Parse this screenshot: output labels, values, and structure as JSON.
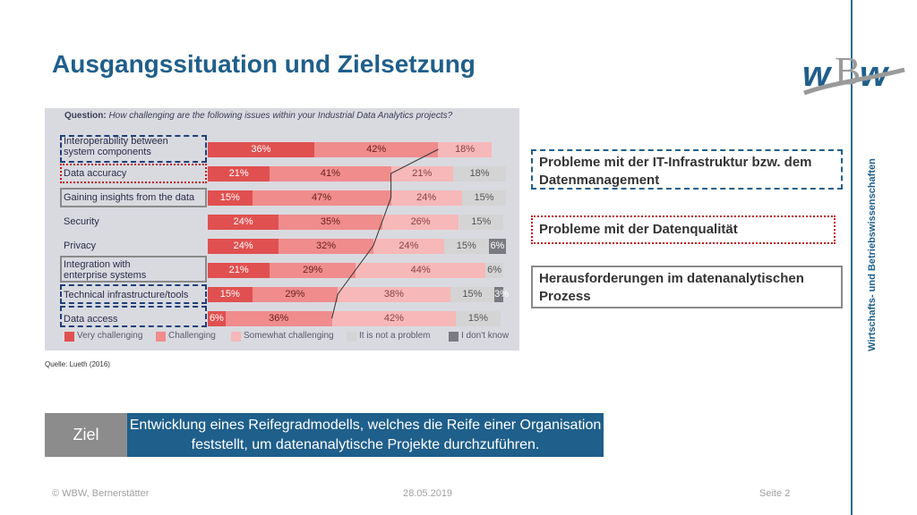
{
  "title": "Ausgangssituation und Zielsetzung",
  "logo_text": "wBw",
  "side_text": "Wirtschafts- und Betriebswissenschaften",
  "figure": {
    "question_label": "Question:",
    "question_text": "How challenging are the following issues within your Industrial Data Analytics projects?",
    "source": "Quelle: Lueth (2016)"
  },
  "chart_data": {
    "type": "bar",
    "stacked": true,
    "orientation": "horizontal",
    "title": "Question: How challenging are the following issues within your Industrial Data Analytics projects?",
    "categories": [
      "Interoperability between system components",
      "Data accuracy",
      "Gaining insights from the data",
      "Security",
      "Privacy",
      "Integration with enterprise systems",
      "Technical infrastructure/tools",
      "Data access"
    ],
    "series": [
      {
        "name": "Very challenging",
        "color": "#e05050",
        "values": [
          36,
          21,
          15,
          24,
          24,
          21,
          15,
          6
        ]
      },
      {
        "name": "Challenging",
        "color": "#f08c8c",
        "values": [
          42,
          41,
          47,
          35,
          32,
          29,
          29,
          36
        ]
      },
      {
        "name": "Somewhat challenging",
        "color": "#f6b8b8",
        "values": [
          18,
          21,
          24,
          26,
          24,
          44,
          38,
          42
        ]
      },
      {
        "name": "It is not a problem",
        "color": "#d4d4d4",
        "values": [
          0,
          18,
          15,
          15,
          15,
          6,
          15,
          15
        ]
      },
      {
        "name": "I don't know",
        "color": "#7a7a82",
        "values": [
          0,
          0,
          0,
          0,
          6,
          0,
          3,
          0
        ]
      }
    ],
    "legend_position": "bottom"
  },
  "callouts": [
    {
      "text": "Probleme mit der IT-Infrastruktur bzw. dem Datenmanagement"
    },
    {
      "text": "Probleme mit der Datenqualität"
    },
    {
      "text": "Herausforderungen im datenanalytischen Prozess"
    }
  ],
  "goal": {
    "label": "Ziel",
    "text": "Entwicklung eines Reifegradmodells, welches die Reife einer Organisation feststellt, um datenanalytische Projekte durchzuführen."
  },
  "footer": {
    "copyright": "© WBW, Bernerstätter",
    "date": "28.05.2019",
    "page": "Seite 2"
  },
  "colors": {
    "accent": "#1f5f8b",
    "goal_label_bg": "#8c8c8c",
    "highlight_red": "#c0151c"
  }
}
